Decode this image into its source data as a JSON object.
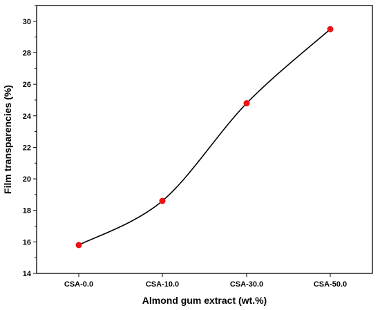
{
  "chart_data": {
    "type": "line",
    "categories": [
      "CSA-0.0",
      "CSA-10.0",
      "CSA-30.0",
      "CSA-50.0"
    ],
    "values": [
      15.8,
      18.6,
      24.8,
      29.5
    ],
    "xlabel": "Almond gum extract (wt.%)",
    "ylabel": "Film transparencies (%)",
    "ylim": [
      14,
      31
    ],
    "yticks": [
      14,
      16,
      18,
      20,
      22,
      24,
      26,
      28,
      30
    ],
    "grid": false,
    "line_style": "smooth",
    "line_color": "#000000",
    "marker_color": "#ee1111"
  }
}
